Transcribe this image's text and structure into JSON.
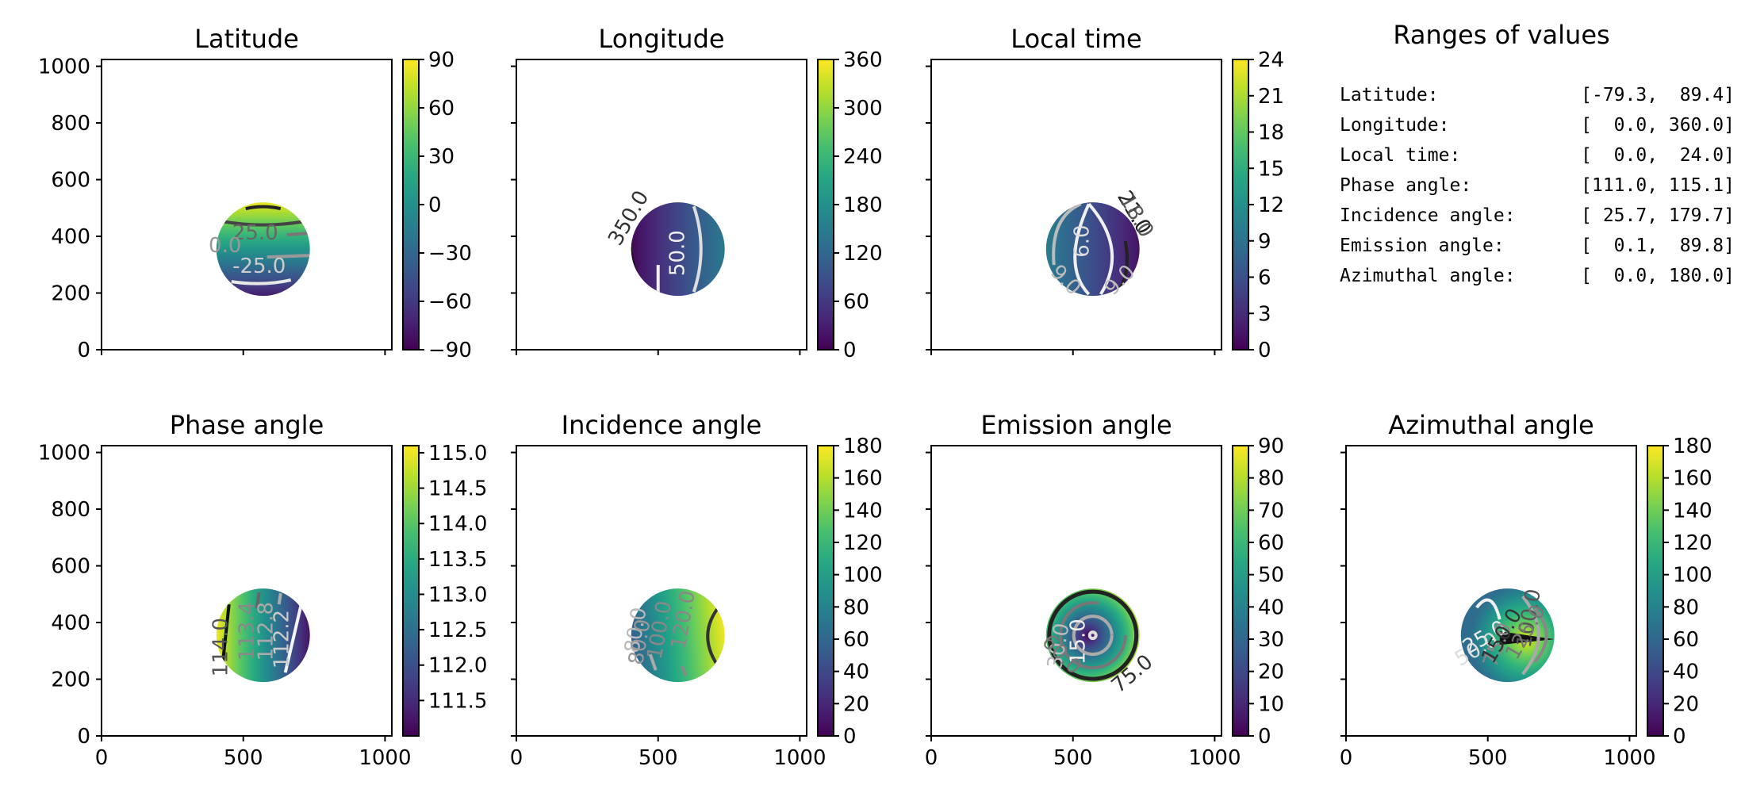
{
  "chart_data": [
    {
      "type": "heatmap",
      "title": "Latitude",
      "xlim": [
        0,
        1024
      ],
      "ylim": [
        0,
        1024
      ],
      "xticks": [
        "0",
        "500",
        "1000"
      ],
      "xtick_values": [
        0,
        500,
        1000
      ],
      "show_xticklabels": false,
      "yticks": [
        "0",
        "200",
        "400",
        "600",
        "800",
        "1000"
      ],
      "ytick_values": [
        0,
        200,
        400,
        600,
        800,
        1000
      ],
      "show_yticklabels": true,
      "colormap": "viridis",
      "colorbar": {
        "min": -90,
        "max": 90,
        "ticks": [
          -90,
          -60,
          -30,
          0,
          30,
          60,
          90
        ],
        "tick_labels": [
          "−90",
          "−60",
          "−30",
          "0",
          "30",
          "60",
          "90"
        ]
      },
      "disk": {
        "center": [
          570,
          355
        ],
        "radius": 165
      },
      "field": "latitude",
      "contour_labels": [
        "25.0",
        "0.0",
        "-25.0"
      ]
    },
    {
      "type": "heatmap",
      "title": "Longitude",
      "xlim": [
        0,
        1024
      ],
      "ylim": [
        0,
        1024
      ],
      "xticks": [
        "0",
        "500",
        "1000"
      ],
      "xtick_values": [
        0,
        500,
        1000
      ],
      "show_xticklabels": false,
      "yticks": [
        "0",
        "200",
        "400",
        "600",
        "800",
        "1000"
      ],
      "ytick_values": [
        0,
        200,
        400,
        600,
        800,
        1000
      ],
      "show_yticklabels": false,
      "colormap": "viridis",
      "colorbar": {
        "min": 0,
        "max": 360,
        "ticks": [
          0,
          60,
          120,
          180,
          240,
          300,
          360
        ],
        "tick_labels": [
          "0",
          "60",
          "120",
          "180",
          "240",
          "300",
          "360"
        ]
      },
      "disk": {
        "center": [
          570,
          355
        ],
        "radius": 165
      },
      "field": "longitude",
      "contour_labels": [
        "350.0",
        "50.0"
      ]
    },
    {
      "type": "heatmap",
      "title": "Local time",
      "xlim": [
        0,
        1024
      ],
      "ylim": [
        0,
        1024
      ],
      "xticks": [
        "0",
        "500",
        "1000"
      ],
      "xtick_values": [
        0,
        500,
        1000
      ],
      "show_xticklabels": false,
      "yticks": [
        "0",
        "200",
        "400",
        "600",
        "800",
        "1000"
      ],
      "ytick_values": [
        0,
        200,
        400,
        600,
        800,
        1000
      ],
      "show_yticklabels": false,
      "colormap": "viridis",
      "colorbar": {
        "min": 0,
        "max": 24,
        "ticks": [
          0,
          3,
          6,
          9,
          12,
          15,
          18,
          21,
          24
        ],
        "tick_labels": [
          "0",
          "3",
          "6",
          "9",
          "12",
          "15",
          "18",
          "21",
          "24"
        ]
      },
      "disk": {
        "center": [
          570,
          355
        ],
        "radius": 165
      },
      "field": "localtime",
      "contour_labels": [
        "21.0",
        "18.0",
        "6.0",
        "9.0",
        "9.0"
      ]
    },
    {
      "type": "table",
      "title": "Ranges of values",
      "rows": [
        {
          "label": "Latitude:",
          "range": "[-79.3,  89.4]",
          "min": -79.3,
          "max": 89.4
        },
        {
          "label": "Longitude:",
          "range": "[  0.0, 360.0]",
          "min": 0.0,
          "max": 360.0
        },
        {
          "label": "Local time:",
          "range": "[  0.0,  24.0]",
          "min": 0.0,
          "max": 24.0
        },
        {
          "label": "Phase angle:",
          "range": "[111.0, 115.1]",
          "min": 111.0,
          "max": 115.1
        },
        {
          "label": "Incidence angle:",
          "range": "[ 25.7, 179.7]",
          "min": 25.7,
          "max": 179.7
        },
        {
          "label": "Emission angle:",
          "range": "[  0.1,  89.8]",
          "min": 0.1,
          "max": 89.8
        },
        {
          "label": "Azimuthal angle:",
          "range": "[  0.0, 180.0]",
          "min": 0.0,
          "max": 180.0
        }
      ]
    },
    {
      "type": "heatmap",
      "title": "Phase angle",
      "xlim": [
        0,
        1024
      ],
      "ylim": [
        0,
        1024
      ],
      "xticks": [
        "0",
        "500",
        "1000"
      ],
      "xtick_values": [
        0,
        500,
        1000
      ],
      "show_xticklabels": true,
      "yticks": [
        "0",
        "200",
        "400",
        "600",
        "800",
        "1000"
      ],
      "ytick_values": [
        0,
        200,
        400,
        600,
        800,
        1000
      ],
      "show_yticklabels": true,
      "colormap": "viridis",
      "colorbar": {
        "min": 111.0,
        "max": 115.1,
        "ticks": [
          111.5,
          112.0,
          112.5,
          113.0,
          113.5,
          114.0,
          114.5,
          115.0
        ],
        "tick_labels": [
          "111.5",
          "112.0",
          "112.5",
          "113.0",
          "113.5",
          "114.0",
          "114.5",
          "115.0"
        ]
      },
      "disk": {
        "center": [
          570,
          355
        ],
        "radius": 165
      },
      "field": "phase",
      "contour_labels": [
        "114.0",
        "113.4",
        "112.8",
        "112.2"
      ]
    },
    {
      "type": "heatmap",
      "title": "Incidence angle",
      "xlim": [
        0,
        1024
      ],
      "ylim": [
        0,
        1024
      ],
      "xticks": [
        "0",
        "500",
        "1000"
      ],
      "xtick_values": [
        0,
        500,
        1000
      ],
      "show_xticklabels": true,
      "yticks": [
        "0",
        "200",
        "400",
        "600",
        "800",
        "1000"
      ],
      "ytick_values": [
        0,
        200,
        400,
        600,
        800,
        1000
      ],
      "show_yticklabels": false,
      "colormap": "viridis",
      "colorbar": {
        "min": 0,
        "max": 180,
        "ticks": [
          0,
          20,
          40,
          60,
          80,
          100,
          120,
          140,
          160,
          180
        ],
        "tick_labels": [
          "0",
          "20",
          "40",
          "60",
          "80",
          "100",
          "120",
          "140",
          "160",
          "180"
        ]
      },
      "disk": {
        "center": [
          570,
          355
        ],
        "radius": 165
      },
      "field": "incidence",
      "contour_labels": [
        "80.0",
        "80.0",
        "100.0",
        "120.0"
      ]
    },
    {
      "type": "heatmap",
      "title": "Emission angle",
      "xlim": [
        0,
        1024
      ],
      "ylim": [
        0,
        1024
      ],
      "xticks": [
        "0",
        "500",
        "1000"
      ],
      "xtick_values": [
        0,
        500,
        1000
      ],
      "show_xticklabels": true,
      "yticks": [
        "0",
        "200",
        "400",
        "600",
        "800",
        "1000"
      ],
      "ytick_values": [
        0,
        200,
        400,
        600,
        800,
        1000
      ],
      "show_yticklabels": false,
      "colormap": "viridis",
      "colorbar": {
        "min": 0,
        "max": 90,
        "ticks": [
          0,
          10,
          20,
          30,
          40,
          50,
          60,
          70,
          80,
          90
        ],
        "tick_labels": [
          "0",
          "10",
          "20",
          "30",
          "40",
          "50",
          "60",
          "70",
          "80",
          "90"
        ]
      },
      "disk": {
        "center": [
          570,
          355
        ],
        "radius": 165
      },
      "field": "emission",
      "contour_labels": [
        "15.0",
        "30.0",
        "60.0",
        "75.0"
      ]
    },
    {
      "type": "heatmap",
      "title": "Azimuthal angle",
      "xlim": [
        0,
        1024
      ],
      "ylim": [
        0,
        1024
      ],
      "xticks": [
        "0",
        "500",
        "1000"
      ],
      "xtick_values": [
        0,
        500,
        1000
      ],
      "show_xticklabels": true,
      "yticks": [
        "0",
        "200",
        "400",
        "600",
        "800",
        "1000"
      ],
      "ytick_values": [
        0,
        200,
        400,
        600,
        800,
        1000
      ],
      "show_yticklabels": false,
      "colormap": "viridis",
      "colorbar": {
        "min": 0,
        "max": 180,
        "ticks": [
          0,
          20,
          40,
          60,
          80,
          100,
          120,
          140,
          160,
          180
        ],
        "tick_labels": [
          "0",
          "20",
          "40",
          "60",
          "80",
          "100",
          "120",
          "140",
          "160",
          "180"
        ]
      },
      "disk": {
        "center": [
          570,
          355
        ],
        "radius": 165
      },
      "field": "azimuth",
      "contour_labels": [
        "25.0",
        "50.0",
        "75.0",
        "150.0",
        "100.0",
        "125.0"
      ]
    }
  ]
}
